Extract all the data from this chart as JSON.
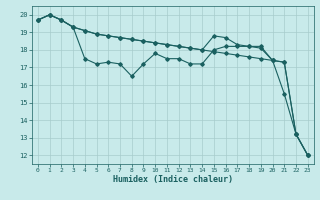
{
  "xlabel": "Humidex (Indice chaleur)",
  "bg_color": "#c8eaea",
  "grid_color": "#a8cccc",
  "line_color": "#1a6060",
  "xlim": [
    -0.5,
    23.5
  ],
  "ylim": [
    11.5,
    20.5
  ],
  "xticks": [
    0,
    1,
    2,
    3,
    4,
    5,
    6,
    7,
    8,
    9,
    10,
    11,
    12,
    13,
    14,
    15,
    16,
    17,
    18,
    19,
    20,
    21,
    22,
    23
  ],
  "yticks": [
    12,
    13,
    14,
    15,
    16,
    17,
    18,
    19,
    20
  ],
  "series1": [
    19.7,
    20.0,
    19.7,
    19.3,
    17.5,
    17.2,
    17.3,
    17.2,
    16.5,
    17.2,
    17.8,
    17.5,
    17.5,
    17.2,
    17.2,
    18.0,
    18.2,
    18.2,
    18.2,
    18.2,
    17.4,
    15.5,
    13.2,
    12.0
  ],
  "series2": [
    19.7,
    20.0,
    19.7,
    19.3,
    19.1,
    18.9,
    18.8,
    18.7,
    18.6,
    18.5,
    18.4,
    18.3,
    18.2,
    18.1,
    18.0,
    18.8,
    18.7,
    18.3,
    18.2,
    18.1,
    17.4,
    17.3,
    13.2,
    12.0
  ],
  "series3": [
    19.7,
    20.0,
    19.7,
    19.3,
    19.1,
    18.9,
    18.8,
    18.7,
    18.6,
    18.5,
    18.4,
    18.3,
    18.2,
    18.1,
    18.0,
    17.9,
    17.8,
    17.7,
    17.6,
    17.5,
    17.4,
    17.3,
    13.2,
    12.0
  ]
}
